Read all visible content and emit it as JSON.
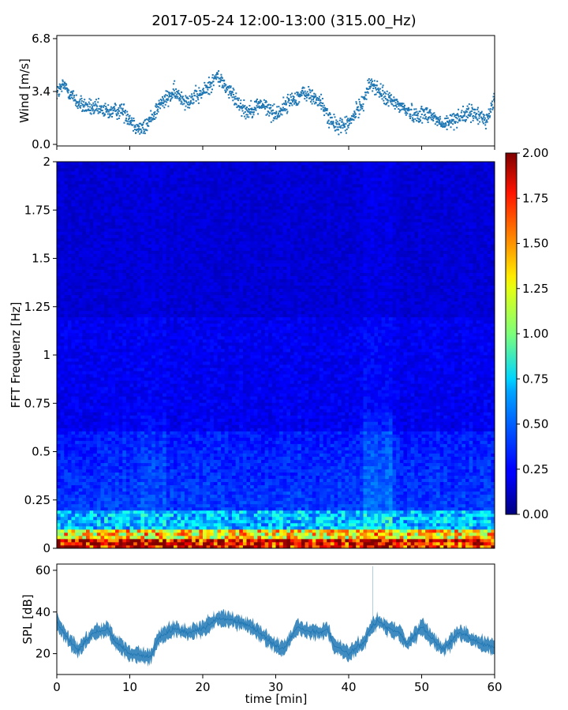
{
  "title": "2017-05-24 12:00-13:00 (315.00_Hz)",
  "colors": {
    "wind": "#1f77b4",
    "spl": "#1f77b4",
    "axis": "#000000",
    "background": "#ffffff"
  },
  "chart_data": [
    {
      "type": "scatter",
      "name": "wind",
      "ylabel": "Wind [m/s]",
      "xlim": [
        0,
        60
      ],
      "ylim": [
        -0.1,
        7.0
      ],
      "yticks": [
        0.0,
        3.4,
        6.8
      ],
      "ytick_labels": [
        "0.0",
        "3.4",
        "6.8"
      ],
      "xticks": [
        0,
        10,
        20,
        30,
        40,
        50,
        60
      ],
      "trend": {
        "x": [
          0,
          1,
          3,
          5,
          7,
          9,
          11,
          12,
          14,
          16,
          18,
          20,
          22,
          24,
          26,
          28,
          30,
          32,
          34,
          36,
          38,
          40,
          42,
          43,
          45,
          47,
          49,
          51,
          53,
          55,
          57,
          59,
          60
        ],
        "y": [
          3.3,
          3.8,
          2.6,
          2.3,
          2.1,
          2.2,
          1.1,
          1.0,
          2.5,
          3.3,
          2.8,
          3.3,
          4.4,
          3.2,
          2.1,
          2.6,
          1.9,
          2.8,
          3.3,
          2.8,
          1.2,
          1.3,
          2.8,
          4.0,
          3.0,
          2.5,
          1.9,
          2.0,
          1.2,
          1.8,
          2.0,
          1.6,
          3.0
        ]
      }
    },
    {
      "type": "heatmap",
      "name": "spectrogram",
      "ylabel": "FFT Frequenz [Hz]",
      "xlim": [
        0,
        60
      ],
      "ylim": [
        0,
        2
      ],
      "yticks": [
        0,
        0.25,
        0.5,
        0.75,
        1,
        1.25,
        1.5,
        1.75,
        2
      ],
      "ytick_labels": [
        "0",
        "0.25",
        "0.5",
        "0.75",
        "1",
        "1.25",
        "1.5",
        "1.75",
        "2"
      ],
      "colormap": "jet",
      "color_range": [
        0.0,
        2.0
      ],
      "colorbar_ticks": [
        "0.00",
        "0.25",
        "0.50",
        "0.75",
        "1.00",
        "1.25",
        "1.50",
        "1.75",
        "2.00"
      ]
    },
    {
      "type": "line",
      "name": "spl",
      "ylabel": "SPL [dB]",
      "xlabel": "time [min]",
      "xlim": [
        0,
        60
      ],
      "ylim": [
        10,
        63
      ],
      "yticks": [
        20,
        40,
        60
      ],
      "xticks": [
        0,
        10,
        20,
        30,
        40,
        50,
        60
      ],
      "trend": {
        "x": [
          0,
          1,
          2,
          3,
          5,
          7,
          8,
          9,
          10,
          12,
          13,
          14,
          16,
          18,
          20,
          22,
          24,
          26,
          28,
          29,
          31,
          33,
          34,
          36,
          37,
          38,
          40,
          42,
          43,
          44,
          45,
          47,
          48,
          50,
          52,
          53,
          55,
          56,
          58,
          60
        ],
        "y": [
          35,
          30,
          25,
          22,
          30,
          32,
          26,
          23,
          20,
          19,
          19,
          28,
          32,
          30,
          32,
          37,
          36,
          34,
          30,
          26,
          22,
          33,
          31,
          30,
          32,
          24,
          20,
          25,
          32,
          36,
          33,
          30,
          24,
          33,
          25,
          22,
          30,
          29,
          25,
          23
        ]
      }
    }
  ]
}
